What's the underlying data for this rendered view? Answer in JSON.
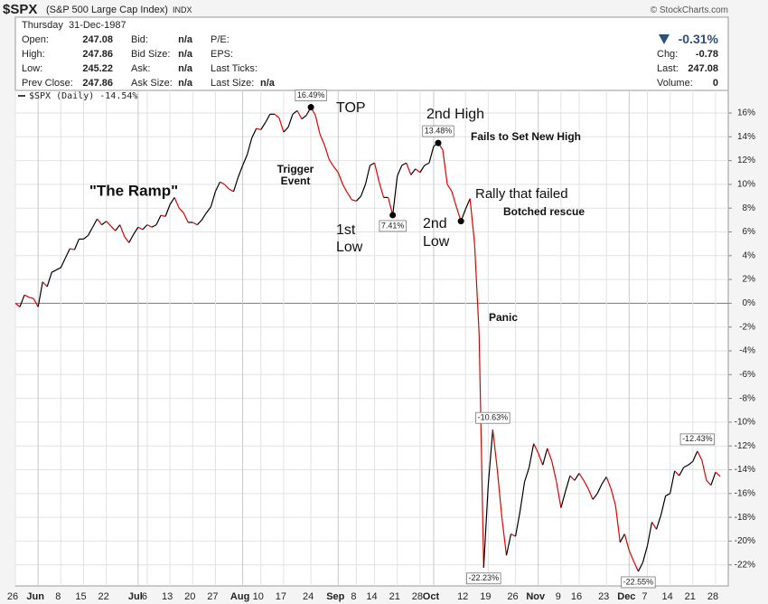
{
  "header": {
    "symbol": "$SPX",
    "name": "(S&P 500 Large Cap Index)",
    "exchange": "INDX",
    "source": "© StockCharts.com",
    "date": "Thursday  31-Dec-1987",
    "quote": [
      {
        "label": "Open:",
        "value": "247.08"
      },
      {
        "label": "High:",
        "value": "247.86"
      },
      {
        "label": "Low:",
        "value": "245.22"
      },
      {
        "label": "Prev Close:",
        "value": "247.86"
      }
    ],
    "book": [
      {
        "label": "Bid:",
        "value": "n/a"
      },
      {
        "label": "Bid Size:",
        "value": "n/a"
      },
      {
        "label": "Ask:",
        "value": "n/a"
      },
      {
        "label": "Ask Size:",
        "value": "n/a"
      }
    ],
    "stats": [
      {
        "label": "P/E:"
      },
      {
        "label": "EPS:"
      },
      {
        "label": "Last Ticks:"
      },
      {
        "label": "Last Size:",
        "value": "n/a"
      }
    ],
    "change_pct": "-0.31%",
    "summary": [
      {
        "label": "Chg:",
        "value": "-0.78"
      },
      {
        "label": "Last:",
        "value": "247.08"
      },
      {
        "label": "Volume:",
        "value": "0"
      }
    ]
  },
  "chart_data": {
    "type": "line",
    "categories": [
      "26",
      null,
      null,
      null,
      null,
      "Jun",
      null,
      null,
      null,
      null,
      "8",
      null,
      null,
      null,
      null,
      "15",
      null,
      null,
      null,
      null,
      "22",
      null,
      null,
      null,
      null,
      null,
      null,
      "Jul",
      null,
      "6",
      null,
      null,
      null,
      null,
      "13",
      null,
      null,
      null,
      null,
      "20",
      null,
      null,
      null,
      null,
      "27",
      null,
      null,
      null,
      null,
      null,
      "Aug",
      null,
      null,
      null,
      "10",
      null,
      null,
      null,
      null,
      "17",
      null,
      null,
      null,
      null,
      null,
      "24",
      null,
      null,
      null,
      null,
      null,
      "Sep",
      null,
      null,
      null,
      "8",
      null,
      null,
      null,
      "14",
      null,
      null,
      null,
      null,
      "21",
      null,
      null,
      null,
      null,
      "28",
      null,
      null,
      "Oct",
      null,
      null,
      null,
      null,
      null,
      null,
      "12",
      null,
      null,
      null,
      null,
      "19",
      null,
      null,
      null,
      null,
      null,
      "26",
      null,
      null,
      null,
      null,
      "Nov",
      null,
      null,
      null,
      null,
      "9",
      null,
      null,
      null,
      "16",
      null,
      null,
      null,
      null,
      null,
      "23",
      null,
      null,
      null,
      null,
      "Dec",
      null,
      null,
      null,
      "7",
      null,
      null,
      null,
      null,
      "14",
      null,
      null,
      null,
      null,
      "21",
      null,
      null,
      null,
      null,
      "28",
      null
    ],
    "series": [
      {
        "name": "$SPX (Daily) -14.54%",
        "up_color": "#000000",
        "down_color": "#e00000",
        "values": [
          0.0,
          -0.3,
          0.7,
          0.5,
          0.4,
          -0.3,
          1.8,
          1.4,
          2.6,
          2.8,
          3.0,
          3.8,
          4.6,
          4.5,
          5.4,
          5.4,
          5.7,
          6.4,
          7.1,
          6.6,
          6.9,
          6.5,
          6.1,
          6.6,
          5.6,
          5.1,
          5.8,
          6.4,
          6.2,
          6.6,
          6.4,
          6.6,
          7.4,
          7.3,
          8.3,
          8.9,
          8.0,
          7.6,
          6.8,
          6.8,
          6.6,
          7.0,
          7.6,
          8.1,
          9.4,
          10.2,
          10.0,
          9.6,
          9.4,
          10.6,
          11.6,
          12.5,
          13.9,
          14.7,
          14.6,
          15.2,
          15.9,
          15.9,
          15.6,
          14.4,
          14.8,
          15.9,
          16.2,
          15.5,
          15.8,
          16.49,
          15.8,
          14.2,
          13.3,
          12.1,
          11.5,
          11.0,
          10.0,
          9.3,
          8.7,
          8.6,
          9.0,
          10.0,
          11.6,
          11.8,
          10.2,
          8.9,
          8.9,
          7.41,
          10.7,
          11.6,
          11.8,
          10.8,
          11.3,
          11.0,
          11.6,
          11.8,
          13.2,
          13.48,
          12.9,
          10.0,
          9.4,
          8.1,
          6.9,
          7.9,
          8.8,
          5.0,
          -2.6,
          -22.23,
          -15.3,
          -10.63,
          -14.0,
          -18.0,
          -21.2,
          -19.4,
          -19.6,
          -17.5,
          -15.0,
          -13.8,
          -11.8,
          -12.6,
          -13.6,
          -12.2,
          -13.3,
          -15.0,
          -17.2,
          -15.8,
          -14.5,
          -14.9,
          -14.3,
          -14.9,
          -15.6,
          -16.5,
          -16.0,
          -15.2,
          -14.6,
          -15.6,
          -17.0,
          -20.1,
          -19.4,
          -20.8,
          -21.7,
          -22.55,
          -21.8,
          -20.4,
          -18.4,
          -19.0,
          -17.8,
          -16.2,
          -16.0,
          -14.1,
          -14.5,
          -13.8,
          -13.6,
          -13.3,
          -12.43,
          -13.2,
          -14.9,
          -15.3,
          -14.2,
          -14.54
        ],
        "value_labels": [
          null,
          null,
          null,
          null,
          null,
          null,
          null,
          null,
          null,
          null,
          null,
          null,
          null,
          null,
          null,
          null,
          null,
          null,
          null,
          null,
          null,
          null,
          null,
          null,
          null,
          null,
          null,
          null,
          null,
          null,
          null,
          null,
          null,
          null,
          null,
          null,
          null,
          null,
          null,
          null,
          null,
          null,
          null,
          null,
          null,
          null,
          null,
          null,
          null,
          null,
          null,
          null,
          null,
          null,
          null,
          null,
          null,
          null,
          null,
          null,
          null,
          null,
          null,
          null,
          null,
          "16.49%",
          null,
          null,
          null,
          null,
          null,
          null,
          null,
          null,
          null,
          null,
          null,
          null,
          null,
          null,
          null,
          null,
          null,
          "7.41%",
          null,
          null,
          null,
          null,
          null,
          null,
          null,
          null,
          null,
          "13.48%",
          null,
          null,
          null,
          null,
          null,
          null,
          null,
          null,
          null,
          "-22.23%",
          null,
          "-10.63%",
          null,
          null,
          null,
          null,
          null,
          null,
          null,
          null,
          null,
          null,
          null,
          null,
          null,
          null,
          null,
          null,
          null,
          null,
          null,
          null,
          null,
          null,
          null,
          null,
          null,
          null,
          null,
          null,
          null,
          null,
          null,
          "-22.55%",
          null,
          null,
          null,
          null,
          null,
          null,
          null,
          null,
          null,
          null,
          null,
          null,
          "-12.43%",
          null,
          null,
          null,
          null,
          null
        ],
        "markers": [
          65,
          83,
          93,
          98
        ]
      }
    ],
    "ylim": [
      -23.77,
      17.9
    ],
    "yticks": [
      {
        "value": -22,
        "label": "-22%"
      },
      {
        "value": -20,
        "label": "-20%"
      },
      {
        "value": -18,
        "label": "-18%"
      },
      {
        "value": -16,
        "label": "-16%"
      },
      {
        "value": -14,
        "label": "-14%"
      },
      {
        "value": -12,
        "label": "-12%"
      },
      {
        "value": -10,
        "label": "-10%"
      },
      {
        "value": -8,
        "label": "-8%"
      },
      {
        "value": -6,
        "label": "-6%"
      },
      {
        "value": -4,
        "label": "-4%"
      },
      {
        "value": -2,
        "label": "-2%"
      },
      {
        "value": 0,
        "label": "0%"
      },
      {
        "value": 2,
        "label": "2%"
      },
      {
        "value": 4,
        "label": "4%"
      },
      {
        "value": 6,
        "label": "6%"
      },
      {
        "value": 8,
        "label": "8%"
      },
      {
        "value": 10,
        "label": "10%"
      },
      {
        "value": 12,
        "label": "12%"
      },
      {
        "value": 14,
        "label": "14%"
      },
      {
        "value": 16,
        "label": "16%"
      }
    ],
    "grid": true,
    "legend": "top-left",
    "annotations": [
      {
        "lines": [
          "\"The Ramp\""
        ]
      },
      {
        "lines": [
          "Trigger",
          "Event"
        ]
      },
      {
        "lines": [
          "TOP"
        ]
      },
      {
        "lines": [
          "1st",
          "Low"
        ]
      },
      {
        "lines": [
          "2nd High"
        ]
      },
      {
        "lines": [
          "Fails to Set New High"
        ]
      },
      {
        "lines": [
          "2nd",
          "Low"
        ]
      },
      {
        "lines": [
          "Rally that failed"
        ]
      },
      {
        "lines": [
          "Botched rescue"
        ]
      },
      {
        "lines": [
          "Panic"
        ]
      }
    ]
  }
}
